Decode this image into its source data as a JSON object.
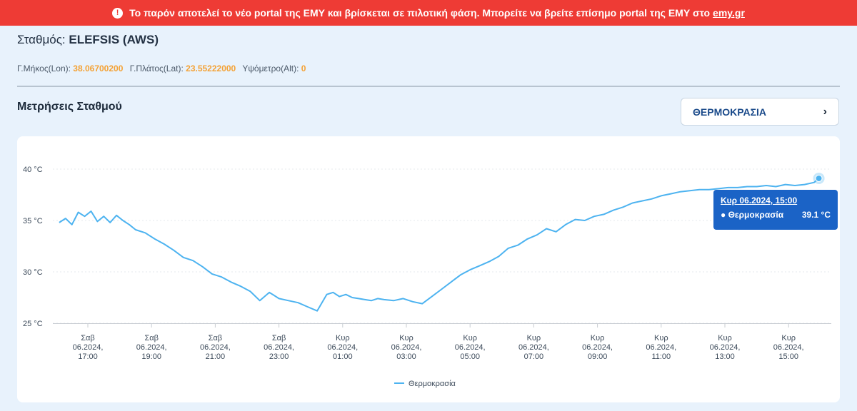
{
  "banner": {
    "message": "Το παρόν αποτελεί το νέο portal της ΕΜΥ και βρίσκεται σε πιλοτική φάση. Μπορείτε να βρείτε επίσημο portal της ΕΜΥ στο",
    "link": "emy.gr",
    "icon": "exclamation-circle-icon"
  },
  "station": {
    "label": "Σταθμός:",
    "name": "ELEFSIS (AWS)",
    "lon_label": "Γ.Μήκος(Lon):",
    "lon": "38.06700200",
    "lat_label": "Γ.Πλάτος(Lat):",
    "lat": "23.55222000",
    "alt_label": "Υψόμετρο(Alt):",
    "alt": "0"
  },
  "measurements": {
    "title": "Μετρήσεις Σταθμού",
    "selected": "ΘΕΡΜΟΚΡΑΣΙΑ",
    "chevron_icon": "chevron-right-icon"
  },
  "tooltip": {
    "date": "Κυρ 06.2024, 15:00",
    "series": "● Θερμοκρασία",
    "value": "39.1 °C"
  },
  "chart_data": {
    "type": "line",
    "ylim": [
      25,
      40
    ],
    "yticks": [
      "25 °C",
      "30 °C",
      "35 °C",
      "40 °C"
    ],
    "xticks": [
      [
        "Σαβ",
        "06.2024,",
        "17:00"
      ],
      [
        "Σαβ",
        "06.2024,",
        "19:00"
      ],
      [
        "Σαβ",
        "06.2024,",
        "21:00"
      ],
      [
        "Σαβ",
        "06.2024,",
        "23:00"
      ],
      [
        "Κυρ",
        "06.2024,",
        "01:00"
      ],
      [
        "Κυρ",
        "06.2024,",
        "03:00"
      ],
      [
        "Κυρ",
        "06.2024,",
        "05:00"
      ],
      [
        "Κυρ",
        "06.2024,",
        "07:00"
      ],
      [
        "Κυρ",
        "06.2024,",
        "09:00"
      ],
      [
        "Κυρ",
        "06.2024,",
        "11:00"
      ],
      [
        "Κυρ",
        "06.2024,",
        "13:00"
      ],
      [
        "Κυρ",
        "06.2024,",
        "15:00"
      ]
    ],
    "series": [
      {
        "name": "Θερμοκρασία",
        "color": "#4db3f0",
        "hours": [
          -0.9,
          -0.7,
          -0.5,
          -0.3,
          -0.1,
          0.1,
          0.3,
          0.5,
          0.7,
          0.9,
          1.1,
          1.3,
          1.5,
          1.8,
          2.1,
          2.4,
          2.7,
          3.0,
          3.3,
          3.6,
          3.9,
          4.2,
          4.5,
          4.8,
          5.1,
          5.4,
          5.7,
          6.0,
          6.3,
          6.6,
          6.9,
          7.2,
          7.5,
          7.7,
          7.9,
          8.1,
          8.3,
          8.5,
          8.7,
          8.9,
          9.1,
          9.3,
          9.6,
          9.9,
          10.2,
          10.5,
          10.8,
          11.1,
          11.4,
          11.7,
          12.0,
          12.3,
          12.6,
          12.9,
          13.2,
          13.5,
          13.8,
          14.1,
          14.4,
          14.7,
          15.0,
          15.3,
          15.6,
          15.9,
          16.2,
          16.5,
          16.8,
          17.1,
          17.4,
          17.7,
          18.0,
          18.3,
          18.6,
          18.9,
          19.2,
          19.5,
          19.8,
          20.1,
          20.4,
          20.7,
          21.0,
          21.3,
          21.6,
          21.9,
          22.2,
          22.5,
          22.8,
          22.95
        ],
        "values": [
          34.8,
          35.2,
          34.6,
          35.8,
          35.4,
          35.9,
          34.9,
          35.4,
          34.8,
          35.5,
          35.0,
          34.6,
          34.1,
          33.8,
          33.2,
          32.7,
          32.1,
          31.4,
          31.1,
          30.5,
          29.8,
          29.5,
          29.0,
          28.6,
          28.1,
          27.2,
          28.0,
          27.4,
          27.2,
          27.0,
          26.6,
          26.2,
          27.8,
          28.0,
          27.6,
          27.8,
          27.5,
          27.4,
          27.3,
          27.2,
          27.4,
          27.3,
          27.2,
          27.4,
          27.1,
          26.9,
          27.6,
          28.3,
          29.0,
          29.7,
          30.2,
          30.6,
          31.0,
          31.5,
          32.3,
          32.6,
          33.2,
          33.6,
          34.2,
          33.9,
          34.6,
          35.1,
          35.0,
          35.4,
          35.6,
          36.0,
          36.3,
          36.7,
          36.9,
          37.1,
          37.4,
          37.6,
          37.8,
          37.9,
          38.0,
          38.0,
          38.1,
          38.2,
          38.2,
          38.3,
          38.3,
          38.4,
          38.3,
          38.5,
          38.4,
          38.5,
          38.7,
          39.1
        ]
      }
    ],
    "legend": "bottom-center",
    "grid": true
  }
}
